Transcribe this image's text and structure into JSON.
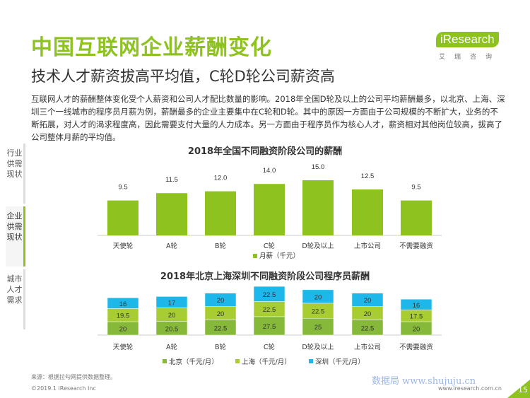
{
  "header": {
    "title": "中国互联网企业薪酬变化",
    "subtitle": "技术人才薪资拔高平均值，C轮D轮公司薪资高",
    "logo_text": "iResearch",
    "logo_sub": "艾瑞咨询"
  },
  "intro": "互联网人才的薪酬整体变化受个人薪资和公司人才配比数量的影响。2018年全国D轮及以上的公司平均薪酬最多，以北京、上海、深圳三个一线城市的程序员月薪为例，薪酬最多的企业主要集中在C轮和D轮。其中的原因一方面由于公司规模的不断扩大，业务的不断拓展，对人才的渴求程度高，因此需要支付大量的人力成本。另一方面由于程序员作为核心人才，薪资相对其他岗位较高，拔高了公司整体月薪的平均值。",
  "side_tabs": [
    "行业供需现状",
    "企业供需现状",
    "城市人才需求"
  ],
  "colors": {
    "green": "#8dc21f",
    "dark_green": "#86b93a",
    "lime": "#a7cd32",
    "blue": "#1eb7e9"
  },
  "chart_data": [
    {
      "type": "bar",
      "title": "2018年全国不同融资阶段公司的薪酬",
      "categories": [
        "天使轮",
        "A轮",
        "B轮",
        "C轮",
        "D轮及以上",
        "上市公司",
        "不需要融资"
      ],
      "series": [
        {
          "name": "月薪（千元）",
          "values": [
            9.5,
            11.5,
            12.0,
            14.0,
            15.0,
            12.5,
            9.5
          ]
        }
      ],
      "value_labels": [
        "9.5",
        "11.5",
        "12.0",
        "14.0",
        "15.0",
        "12.5",
        "9.5"
      ],
      "legend": "bottom"
    },
    {
      "type": "bar",
      "stacked": true,
      "title": "2018年北京上海深圳不同融资阶段公司程序员薪酬",
      "categories": [
        "天使轮",
        "A轮",
        "B轮",
        "C轮",
        "D轮及以上",
        "上市公司",
        "不需要融资"
      ],
      "series": [
        {
          "name": "北京（千元/月）",
          "values": [
            20,
            20.5,
            22.5,
            27.5,
            25,
            22.5,
            20
          ]
        },
        {
          "name": "上海（千元/月）",
          "values": [
            19.5,
            20,
            20,
            22.5,
            22.5,
            20,
            17.5
          ]
        },
        {
          "name": "深圳（千元/月）",
          "values": [
            16,
            17,
            20,
            22.5,
            20,
            20,
            16
          ]
        }
      ],
      "legend": "bottom"
    }
  ],
  "footer": {
    "source": "来源：根据拉勾网提供数据整理。",
    "copyright": "©2019.1 iResearch Inc",
    "site": "www.iresearch.com.cn",
    "page": "15",
    "watermark": "数据局 www.shujuju.cn"
  }
}
